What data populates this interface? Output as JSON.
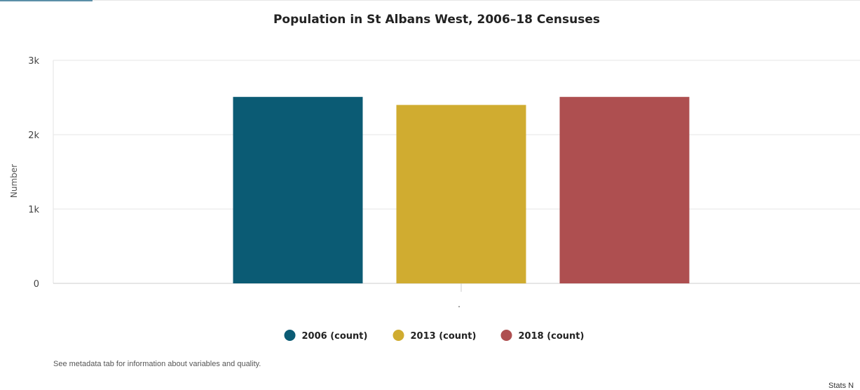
{
  "chart_data": {
    "type": "bar",
    "title": "Population in St Albans West, 2006–18 Censuses",
    "ylabel": "Number",
    "xlabel": "",
    "categories": [
      "."
    ],
    "ylim": [
      0,
      3000
    ],
    "y_ticks": [
      0,
      1000,
      2000,
      3000
    ],
    "y_tick_labels": [
      "0",
      "1k",
      "2k",
      "3k"
    ],
    "grid": true,
    "legend_position": "bottom",
    "series": [
      {
        "name": "2006 (count)",
        "values": [
          2508
        ],
        "color": "#0b5b74"
      },
      {
        "name": "2013 (count)",
        "values": [
          2400
        ],
        "color": "#d0ac30"
      },
      {
        "name": "2018 (count)",
        "values": [
          2508
        ],
        "color": "#ae4f50"
      }
    ]
  },
  "footnote": "See metadata tab for information about variables and quality.",
  "source": "Stats N"
}
